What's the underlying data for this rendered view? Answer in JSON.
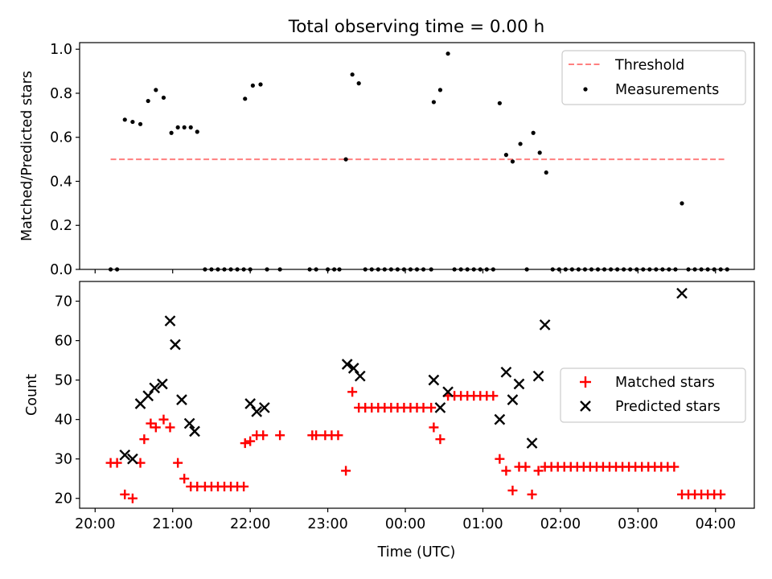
{
  "figure": {
    "title": "Total observing time = 0.00 h"
  },
  "chart_data": [
    {
      "type": "scatter",
      "ylabel": "Matched/Predicted stars",
      "xlabel": "",
      "ylim": [
        0,
        1.03
      ],
      "x_is_time": true,
      "yticks": [
        0.0,
        0.2,
        0.4,
        0.6,
        0.8,
        1.0
      ],
      "ytick_labels": [
        "0.0",
        "0.2",
        "0.4",
        "0.6",
        "0.8",
        "1.0"
      ],
      "legend_position": "top-right",
      "threshold": {
        "name": "Threshold",
        "value": 0.5,
        "x_start": "20:12",
        "x_end": "04:07",
        "color": "#ff7f7f",
        "style": "dashed"
      },
      "series": [
        {
          "name": "Measurements",
          "color": "#000000",
          "marker": "dot",
          "points": [
            [
              "20:12",
              0.0
            ],
            [
              "20:17",
              0.0
            ],
            [
              "20:23",
              0.68
            ],
            [
              "20:29",
              0.67
            ],
            [
              "20:35",
              0.66
            ],
            [
              "20:41",
              0.765
            ],
            [
              "20:47",
              0.815
            ],
            [
              "20:53",
              0.78
            ],
            [
              "20:59",
              0.62
            ],
            [
              "21:04",
              0.645
            ],
            [
              "21:09",
              0.645
            ],
            [
              "21:14",
              0.645
            ],
            [
              "21:19",
              0.625
            ],
            [
              "21:25",
              0.0
            ],
            [
              "21:30",
              0.0
            ],
            [
              "21:35",
              0.0
            ],
            [
              "21:40",
              0.0
            ],
            [
              "21:45",
              0.0
            ],
            [
              "21:50",
              0.0
            ],
            [
              "21:55",
              0.0
            ],
            [
              "22:00",
              0.0
            ],
            [
              "21:56",
              0.775
            ],
            [
              "22:02",
              0.835
            ],
            [
              "22:08",
              0.84
            ],
            [
              "22:13",
              0.0
            ],
            [
              "22:23",
              0.0
            ],
            [
              "22:46",
              0.0
            ],
            [
              "22:51",
              0.0
            ],
            [
              "23:00",
              0.0
            ],
            [
              "23:05",
              0.0
            ],
            [
              "23:09",
              0.0
            ],
            [
              "23:14",
              0.5
            ],
            [
              "23:19",
              0.885
            ],
            [
              "23:24",
              0.845
            ],
            [
              "23:29",
              0.0
            ],
            [
              "23:34",
              0.0
            ],
            [
              "23:39",
              0.0
            ],
            [
              "23:44",
              0.0
            ],
            [
              "23:49",
              0.0
            ],
            [
              "23:54",
              0.0
            ],
            [
              "23:59",
              0.0
            ],
            [
              "00:04",
              0.0
            ],
            [
              "00:09",
              0.0
            ],
            [
              "00:14",
              0.0
            ],
            [
              "00:20",
              0.0
            ],
            [
              "00:22",
              0.76
            ],
            [
              "00:27",
              0.815
            ],
            [
              "00:33",
              0.98
            ],
            [
              "00:38",
              0.0
            ],
            [
              "00:43",
              0.0
            ],
            [
              "00:48",
              0.0
            ],
            [
              "00:53",
              0.0
            ],
            [
              "00:58",
              0.0
            ],
            [
              "01:03",
              0.0
            ],
            [
              "01:08",
              0.0
            ],
            [
              "01:13",
              0.755
            ],
            [
              "01:18",
              0.52
            ],
            [
              "01:23",
              0.49
            ],
            [
              "01:29",
              0.57
            ],
            [
              "01:34",
              0.0
            ],
            [
              "01:39",
              0.62
            ],
            [
              "01:44",
              0.53
            ],
            [
              "01:49",
              0.44
            ],
            [
              "01:54",
              0.0
            ],
            [
              "01:59",
              0.0
            ],
            [
              "02:04",
              0.0
            ],
            [
              "02:09",
              0.0
            ],
            [
              "02:14",
              0.0
            ],
            [
              "02:19",
              0.0
            ],
            [
              "02:24",
              0.0
            ],
            [
              "02:29",
              0.0
            ],
            [
              "02:34",
              0.0
            ],
            [
              "02:39",
              0.0
            ],
            [
              "02:44",
              0.0
            ],
            [
              "02:49",
              0.0
            ],
            [
              "02:54",
              0.0
            ],
            [
              "02:59",
              0.0
            ],
            [
              "03:04",
              0.0
            ],
            [
              "03:09",
              0.0
            ],
            [
              "03:14",
              0.0
            ],
            [
              "03:19",
              0.0
            ],
            [
              "03:24",
              0.0
            ],
            [
              "03:29",
              0.0
            ],
            [
              "03:34",
              0.3
            ],
            [
              "03:39",
              0.0
            ],
            [
              "03:44",
              0.0
            ],
            [
              "03:49",
              0.0
            ],
            [
              "03:54",
              0.0
            ],
            [
              "03:59",
              0.0
            ],
            [
              "04:04",
              0.0
            ],
            [
              "04:09",
              0.0
            ]
          ]
        }
      ]
    },
    {
      "type": "scatter",
      "ylabel": "Count",
      "xlabel": "Time (UTC)",
      "ylim": [
        17.5,
        75
      ],
      "x_is_time": true,
      "yticks": [
        20,
        30,
        40,
        50,
        60,
        70
      ],
      "ytick_labels": [
        "20",
        "30",
        "40",
        "50",
        "60",
        "70"
      ],
      "xlim": [
        "19:48",
        "04:30"
      ],
      "xticks": [
        "20:00",
        "21:00",
        "22:00",
        "23:00",
        "00:00",
        "01:00",
        "02:00",
        "03:00",
        "04:00"
      ],
      "xtick_labels": [
        "20:00",
        "21:00",
        "22:00",
        "23:00",
        "00:00",
        "01:00",
        "02:00",
        "03:00",
        "04:00"
      ],
      "legend_position": "center-right",
      "series": [
        {
          "name": "Matched stars",
          "color": "#ff0000",
          "marker": "plus",
          "points": [
            [
              "20:12",
              29
            ],
            [
              "20:17",
              29
            ],
            [
              "20:23",
              21
            ],
            [
              "20:29",
              20
            ],
            [
              "20:35",
              29
            ],
            [
              "20:38",
              35
            ],
            [
              "20:43",
              39
            ],
            [
              "20:47",
              38
            ],
            [
              "20:53",
              40
            ],
            [
              "20:58",
              38
            ],
            [
              "21:04",
              29
            ],
            [
              "21:09",
              25
            ],
            [
              "21:14",
              23
            ],
            [
              "21:19",
              23
            ],
            [
              "21:25",
              23
            ],
            [
              "21:30",
              23
            ],
            [
              "21:35",
              23
            ],
            [
              "21:40",
              23
            ],
            [
              "21:45",
              23
            ],
            [
              "21:50",
              23
            ],
            [
              "21:55",
              23
            ],
            [
              "21:56",
              34
            ],
            [
              "22:00",
              34.5
            ],
            [
              "22:05",
              36
            ],
            [
              "22:10",
              36
            ],
            [
              "22:23",
              36
            ],
            [
              "22:48",
              36
            ],
            [
              "22:51",
              36
            ],
            [
              "22:58",
              36
            ],
            [
              "23:03",
              36
            ],
            [
              "23:08",
              36
            ],
            [
              "23:14",
              27
            ],
            [
              "23:19",
              47
            ],
            [
              "23:24",
              43
            ],
            [
              "23:29",
              43
            ],
            [
              "23:34",
              43
            ],
            [
              "23:39",
              43
            ],
            [
              "23:44",
              43
            ],
            [
              "23:49",
              43
            ],
            [
              "23:54",
              43
            ],
            [
              "23:59",
              43
            ],
            [
              "00:04",
              43
            ],
            [
              "00:09",
              43
            ],
            [
              "00:14",
              43
            ],
            [
              "00:20",
              43
            ],
            [
              "00:22",
              38
            ],
            [
              "00:27",
              35
            ],
            [
              "00:33",
              46
            ],
            [
              "00:38",
              46
            ],
            [
              "00:43",
              46
            ],
            [
              "00:48",
              46
            ],
            [
              "00:53",
              46
            ],
            [
              "00:58",
              46
            ],
            [
              "01:03",
              46
            ],
            [
              "01:08",
              46
            ],
            [
              "01:13",
              30
            ],
            [
              "01:18",
              27
            ],
            [
              "01:23",
              22
            ],
            [
              "01:28",
              28
            ],
            [
              "01:33",
              28
            ],
            [
              "01:38",
              21
            ],
            [
              "01:43",
              27
            ],
            [
              "01:48",
              28
            ],
            [
              "01:53",
              28
            ],
            [
              "01:58",
              28
            ],
            [
              "02:03",
              28
            ],
            [
              "02:08",
              28
            ],
            [
              "02:13",
              28
            ],
            [
              "02:18",
              28
            ],
            [
              "02:23",
              28
            ],
            [
              "02:28",
              28
            ],
            [
              "02:33",
              28
            ],
            [
              "02:38",
              28
            ],
            [
              "02:43",
              28
            ],
            [
              "02:48",
              28
            ],
            [
              "02:53",
              28
            ],
            [
              "02:58",
              28
            ],
            [
              "03:03",
              28
            ],
            [
              "03:08",
              28
            ],
            [
              "03:13",
              28
            ],
            [
              "03:18",
              28
            ],
            [
              "03:23",
              28
            ],
            [
              "03:28",
              28
            ],
            [
              "03:34",
              21
            ],
            [
              "03:39",
              21
            ],
            [
              "03:44",
              21
            ],
            [
              "03:49",
              21
            ],
            [
              "03:54",
              21
            ],
            [
              "03:59",
              21
            ],
            [
              "04:04",
              21
            ]
          ]
        },
        {
          "name": "Predicted stars",
          "color": "#000000",
          "marker": "x",
          "points": [
            [
              "20:23",
              31
            ],
            [
              "20:29",
              30
            ],
            [
              "20:35",
              44
            ],
            [
              "20:41",
              46
            ],
            [
              "20:46",
              48
            ],
            [
              "20:52",
              49
            ],
            [
              "20:58",
              65
            ],
            [
              "21:02",
              59
            ],
            [
              "21:07",
              45
            ],
            [
              "21:13",
              39
            ],
            [
              "21:17",
              37
            ],
            [
              "22:00",
              44
            ],
            [
              "22:05",
              42
            ],
            [
              "22:11",
              43
            ],
            [
              "23:15",
              54
            ],
            [
              "23:20",
              53
            ],
            [
              "23:25",
              51
            ],
            [
              "00:22",
              50
            ],
            [
              "00:27",
              43
            ],
            [
              "00:33",
              47
            ],
            [
              "01:13",
              40
            ],
            [
              "01:18",
              52
            ],
            [
              "01:23",
              45
            ],
            [
              "01:28",
              49
            ],
            [
              "01:38",
              34
            ],
            [
              "01:43",
              51
            ],
            [
              "01:48",
              64
            ],
            [
              "03:34",
              72
            ]
          ]
        }
      ]
    }
  ]
}
